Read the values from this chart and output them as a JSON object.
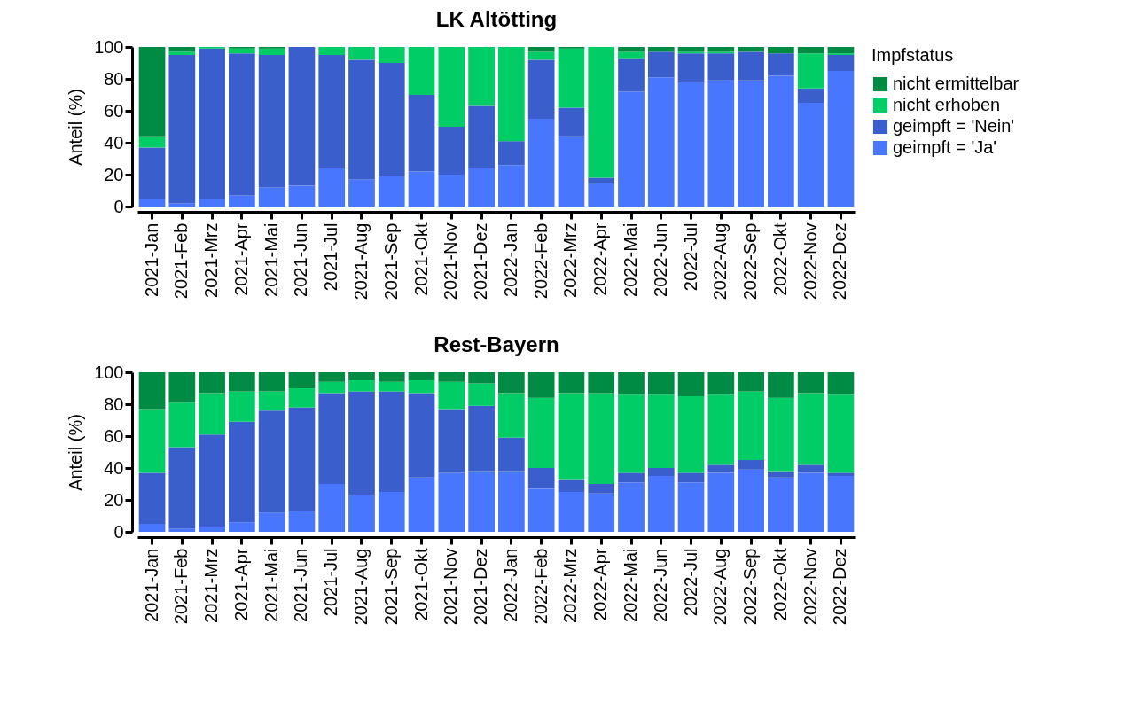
{
  "chart_data": [
    {
      "type": "bar",
      "title": "LK Altötting",
      "ylabel": "Anteil (%)",
      "legend_title": "Impfstatus",
      "legend": "right",
      "stacked": true,
      "ylim": [
        0,
        100
      ],
      "yticks": [
        0,
        20,
        40,
        60,
        80,
        100
      ],
      "categories": [
        "2021-Jan",
        "2021-Feb",
        "2021-Mrz",
        "2021-Apr",
        "2021-Mai",
        "2021-Jun",
        "2021-Jul",
        "2021-Aug",
        "2021-Sep",
        "2021-Okt",
        "2021-Nov",
        "2021-Dez",
        "2022-Jan",
        "2022-Feb",
        "2022-Mrz",
        "2022-Apr",
        "2022-Mai",
        "2022-Jun",
        "2022-Jul",
        "2022-Aug",
        "2022-Sep",
        "2022-Okt",
        "2022-Nov",
        "2022-Dez"
      ],
      "series": [
        {
          "name": "geimpft = 'Ja'",
          "color": "#4876ff",
          "values": [
            5,
            2,
            5,
            7,
            12,
            13,
            24,
            17,
            19,
            22,
            20,
            24,
            26,
            55,
            44,
            15,
            72,
            81,
            78,
            79,
            79,
            82,
            65,
            85
          ]
        },
        {
          "name": "geimpft = 'Nein'",
          "color": "#3a5fcd",
          "values": [
            32,
            93,
            94,
            89,
            83,
            87,
            71,
            75,
            71,
            48,
            30,
            39,
            15,
            37,
            18,
            3,
            21,
            16,
            18,
            17,
            18,
            14,
            9,
            10
          ]
        },
        {
          "name": "nicht erhoben",
          "color": "#00cd66",
          "values": [
            7,
            2,
            1,
            3,
            4,
            0,
            5,
            8,
            10,
            30,
            50,
            37,
            59,
            5,
            37,
            82,
            4,
            0,
            1,
            1,
            0,
            0,
            22,
            1
          ]
        },
        {
          "name": "nicht ermittelbar",
          "color": "#008b45",
          "values": [
            56,
            3,
            0,
            1,
            1,
            0,
            0,
            0,
            0,
            0,
            0,
            0,
            0,
            3,
            1,
            0,
            3,
            3,
            3,
            3,
            3,
            4,
            4,
            4
          ]
        }
      ]
    },
    {
      "type": "bar",
      "title": "Rest-Bayern",
      "ylabel": "Anteil (%)",
      "stacked": true,
      "ylim": [
        0,
        100
      ],
      "yticks": [
        0,
        20,
        40,
        60,
        80,
        100
      ],
      "categories": [
        "2021-Jan",
        "2021-Feb",
        "2021-Mrz",
        "2021-Apr",
        "2021-Mai",
        "2021-Jun",
        "2021-Jul",
        "2021-Aug",
        "2021-Sep",
        "2021-Okt",
        "2021-Nov",
        "2021-Dez",
        "2022-Jan",
        "2022-Feb",
        "2022-Mrz",
        "2022-Apr",
        "2022-Mai",
        "2022-Jun",
        "2022-Jul",
        "2022-Aug",
        "2022-Sep",
        "2022-Okt",
        "2022-Nov",
        "2022-Dez"
      ],
      "series": [
        {
          "color": "#4876ff",
          "values": [
            5,
            2,
            3,
            6,
            12,
            13,
            30,
            23,
            25,
            34,
            37,
            38,
            38,
            27,
            25,
            24,
            31,
            35,
            31,
            37,
            39,
            34,
            37,
            35
          ]
        },
        {
          "color": "#3a5fcd",
          "values": [
            32,
            51,
            58,
            63,
            64,
            65,
            57,
            65,
            63,
            53,
            40,
            41,
            21,
            13,
            8,
            6,
            6,
            5,
            6,
            5,
            6,
            4,
            5,
            2
          ]
        },
        {
          "color": "#00cd66",
          "values": [
            40,
            28,
            26,
            19,
            12,
            12,
            7,
            7,
            6,
            8,
            17,
            14,
            28,
            44,
            54,
            57,
            49,
            46,
            48,
            44,
            43,
            46,
            45,
            49
          ]
        },
        {
          "color": "#008b45",
          "values": [
            23,
            19,
            13,
            12,
            12,
            10,
            6,
            5,
            6,
            5,
            6,
            7,
            13,
            16,
            13,
            13,
            14,
            14,
            15,
            14,
            12,
            16,
            13,
            14
          ]
        }
      ]
    }
  ]
}
